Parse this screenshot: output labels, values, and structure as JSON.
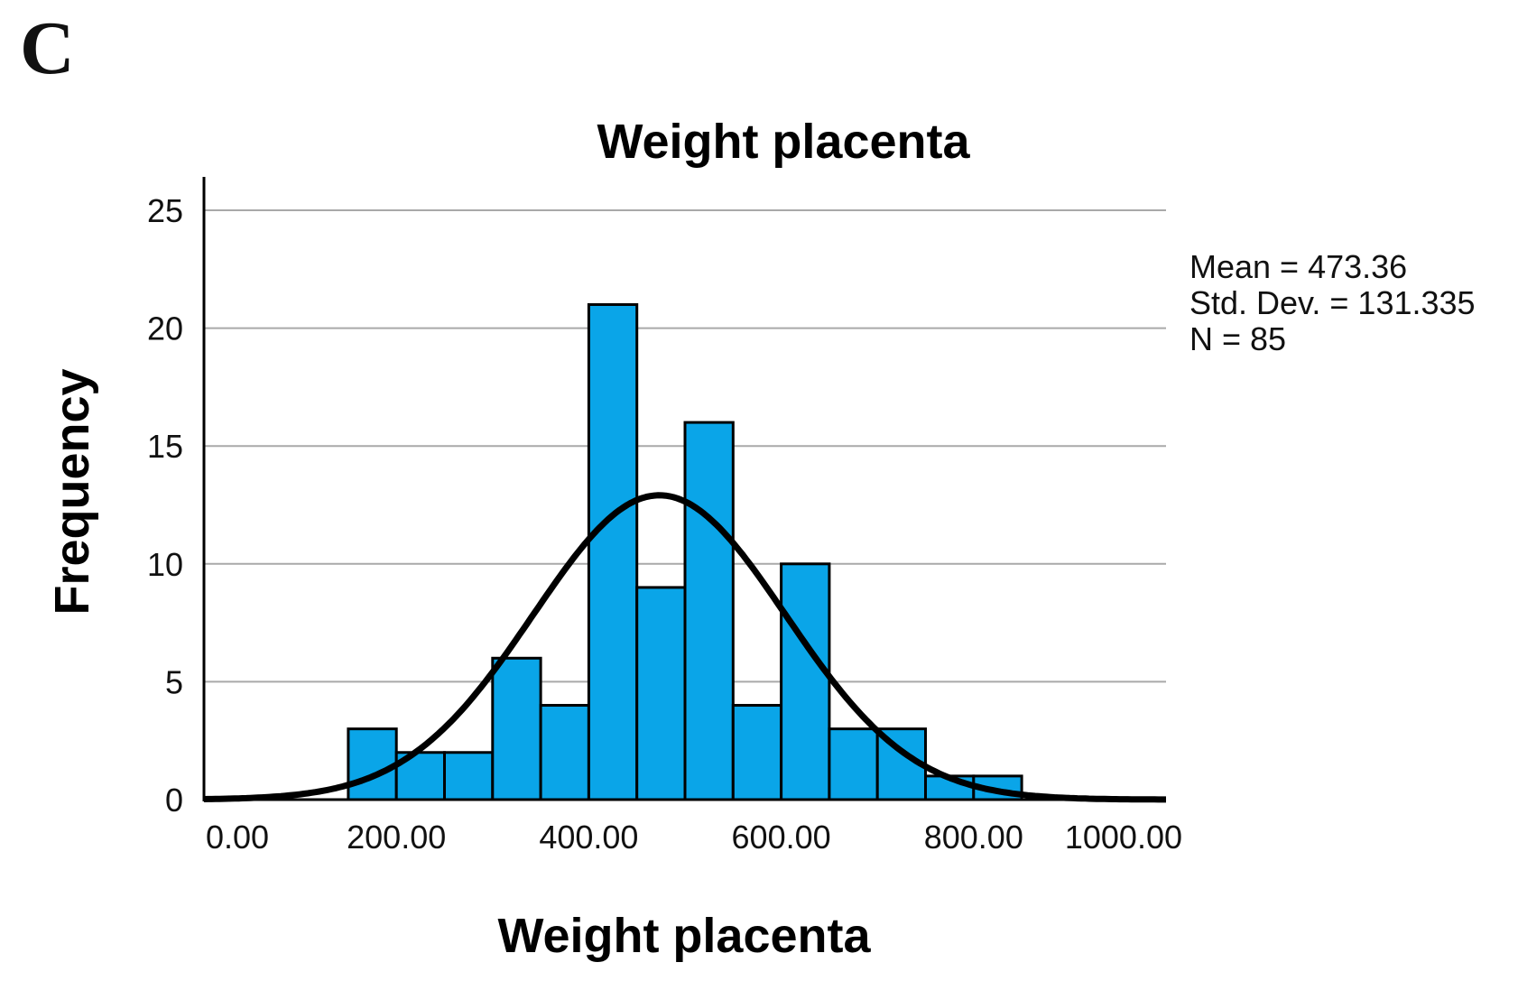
{
  "panel_label": "C",
  "chart_data": {
    "type": "bar",
    "title": "Weight placenta",
    "xlabel": "Weight placenta",
    "ylabel": "Frequency",
    "xlim": [
      0,
      1000
    ],
    "ylim": [
      0,
      25
    ],
    "x_ticks": [
      "0.00",
      "200.00",
      "400.00",
      "600.00",
      "800.00",
      "1000.00"
    ],
    "y_ticks": [
      "0",
      "5",
      "10",
      "15",
      "20",
      "25"
    ],
    "grid": "horizontal",
    "bin_width": 50,
    "bins": [
      {
        "start": 150,
        "end": 200,
        "count": 3
      },
      {
        "start": 200,
        "end": 250,
        "count": 2
      },
      {
        "start": 250,
        "end": 300,
        "count": 2
      },
      {
        "start": 300,
        "end": 350,
        "count": 6
      },
      {
        "start": 350,
        "end": 400,
        "count": 4
      },
      {
        "start": 400,
        "end": 450,
        "count": 21
      },
      {
        "start": 450,
        "end": 500,
        "count": 9
      },
      {
        "start": 500,
        "end": 550,
        "count": 16
      },
      {
        "start": 550,
        "end": 600,
        "count": 4
      },
      {
        "start": 600,
        "end": 650,
        "count": 10
      },
      {
        "start": 650,
        "end": 700,
        "count": 3
      },
      {
        "start": 700,
        "end": 750,
        "count": 3
      },
      {
        "start": 750,
        "end": 800,
        "count": 1
      },
      {
        "start": 800,
        "end": 850,
        "count": 1
      }
    ],
    "bar_color": "#0aa5e8",
    "curve": {
      "type": "normal",
      "mean": 473.36,
      "sd": 131.335,
      "n": 85
    },
    "legend_position": "right",
    "stats": [
      "Mean = 473.36",
      "Std. Dev. = 131.335",
      "N = 85"
    ]
  }
}
